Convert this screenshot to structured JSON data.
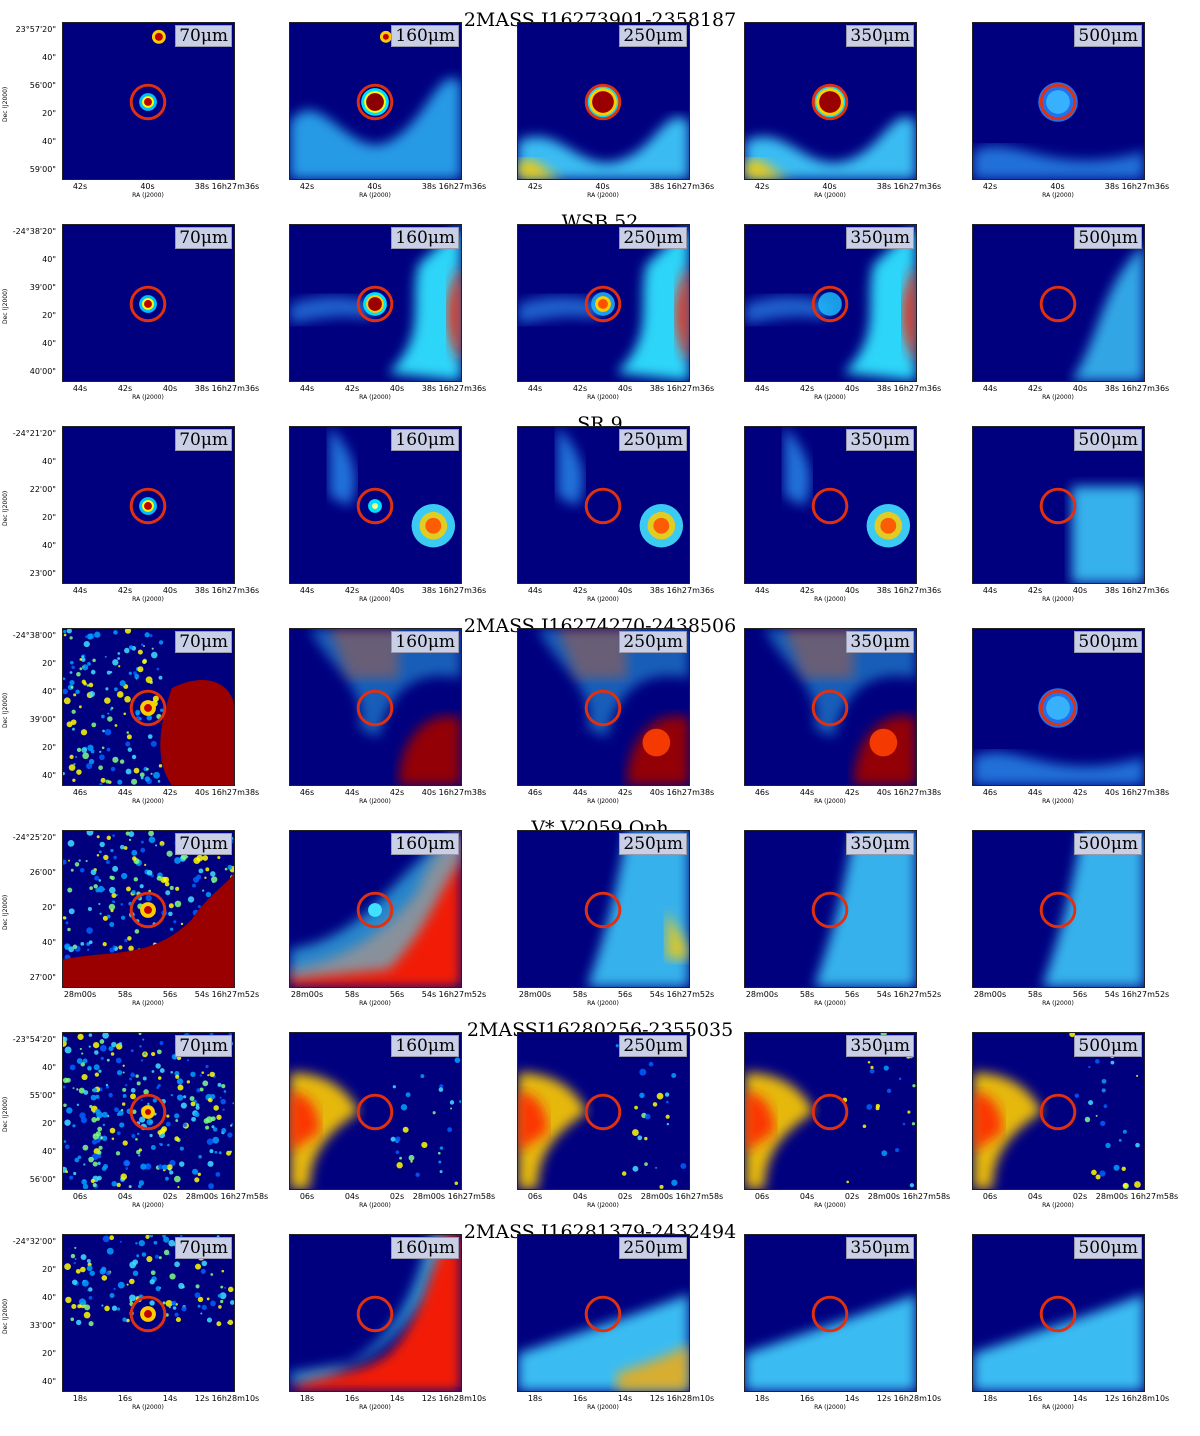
{
  "axis_labels": {
    "ra": "RA (J2000)",
    "dec": "Dec (J2000)"
  },
  "bands": [
    "70μm",
    "160μm",
    "250μm",
    "350μm",
    "500μm"
  ],
  "rows": [
    {
      "object": "2MASS J16273901-2358187",
      "dec_ticks": [
        "23°57'20\"",
        "40\"",
        "56'00\"",
        "20\"",
        "40\"",
        "59'00\""
      ],
      "ra_ticks": [
        "42s",
        "40s",
        "38s 16h27m36s"
      ],
      "maps": [
        "compact",
        "compact-bright",
        "compact-large",
        "compact-large",
        "faint"
      ]
    },
    {
      "object": "WSB 52",
      "dec_ticks": [
        "-24°38'20\"",
        "40\"",
        "39'00\"",
        "20\"",
        "40\"",
        "40'00\""
      ],
      "ra_ticks": [
        "44s",
        "42s",
        "40s",
        "38s 16h27m36s"
      ],
      "maps": [
        "compact",
        "filament-right",
        "filament-right",
        "filament-right",
        "faint-right"
      ]
    },
    {
      "object": "SR 9",
      "dec_ticks": [
        "-24°21'20\"",
        "40\"",
        "22'00\"",
        "20\"",
        "40\"",
        "23'00\""
      ],
      "ra_ticks": [
        "44s",
        "42s",
        "40s",
        "38s 16h27m36s"
      ],
      "maps": [
        "compact",
        "offset-blob",
        "offset-blob",
        "offset-blob",
        "faint-corner"
      ]
    },
    {
      "object": "2MASS J16274270-2438506",
      "dec_ticks": [
        "-24°38'00\"",
        "20\"",
        "40\"",
        "39'00\"",
        "20\"",
        "40\""
      ],
      "ra_ticks": [
        "46s",
        "44s",
        "42s",
        "40s 16h27m38s"
      ],
      "maps": [
        "noisy-cloud",
        "cloud-top-bottom",
        "cloud-top-bottom",
        "cloud-top-bottom",
        "faint"
      ]
    },
    {
      "object": "V* V2059 Oph",
      "dec_ticks": [
        "-24°25'20\"",
        "26'00\"",
        "20\"",
        "40\"",
        "27'00\""
      ],
      "ra_ticks": [
        "28m00s",
        "58s",
        "56s",
        "54s 16h27m52s"
      ],
      "maps": [
        "noisy-cloud-bottom",
        "cloud-edge",
        "edge-right",
        "edge-right",
        "edge-right"
      ]
    },
    {
      "object": "2MASSJ16280256-2355035",
      "dec_ticks": [
        "-23°54'20\"",
        "40\"",
        "55'00\"",
        "20\"",
        "40\"",
        "56'00\""
      ],
      "ra_ticks": [
        "06s",
        "04s",
        "02s",
        "28m00s 16h27m58s"
      ],
      "maps": [
        "noisy",
        "arc-left",
        "arc-left",
        "arc-left",
        "arc-left"
      ]
    },
    {
      "object": "2MASS J16281379-2432494",
      "dec_ticks": [
        "-24°32'00\"",
        "20\"",
        "40\"",
        "33'00\"",
        "20\"",
        "40\""
      ],
      "ra_ticks": [
        "18s",
        "16s",
        "14s",
        "12s 16h28m10s"
      ],
      "maps": [
        "noisy-compact",
        "cloud-bottom-right",
        "bottom-band",
        "bottom-band",
        "bottom-band"
      ]
    }
  ]
}
